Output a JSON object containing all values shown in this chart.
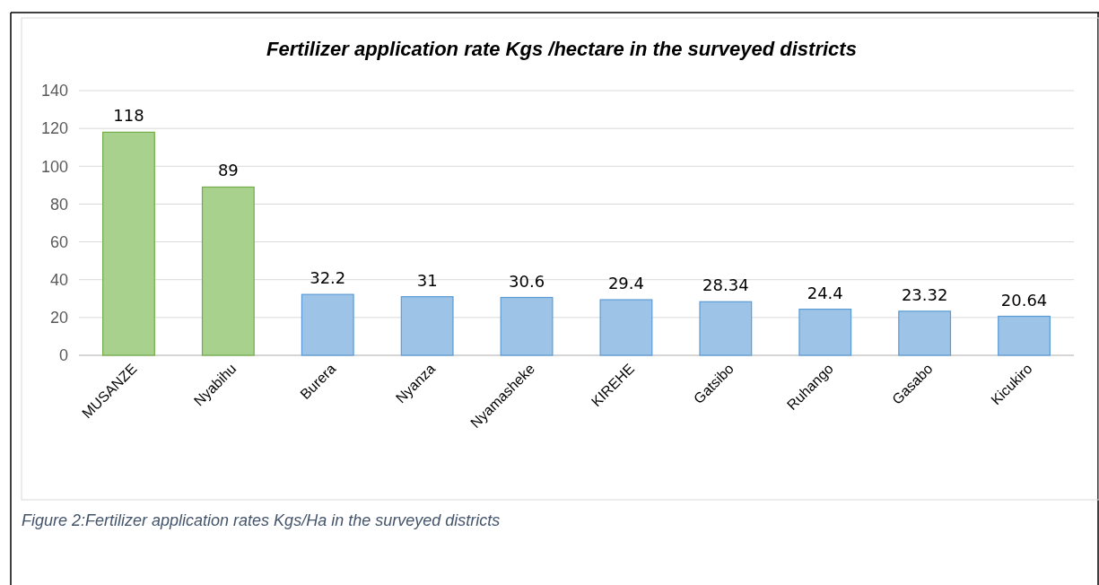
{
  "chart_data": {
    "type": "bar",
    "title": "Fertilizer application rate Kgs /hectare in the surveyed districts",
    "categories": [
      "MUSANZE",
      "Nyabihu",
      "Burera",
      "Nyanza",
      "Nyamasheke",
      "KIREHE",
      "Gatsibo",
      "Ruhango",
      "Gasabo",
      "Kicukiro"
    ],
    "values": [
      118,
      89,
      32.2,
      31,
      30.6,
      29.4,
      28.34,
      24.4,
      23.32,
      20.64
    ],
    "colors": [
      "#a9d18e",
      "#a9d18e",
      "#9dc3e6",
      "#9dc3e6",
      "#9dc3e6",
      "#9dc3e6",
      "#9dc3e6",
      "#9dc3e6",
      "#9dc3e6",
      "#9dc3e6"
    ],
    "ylim": [
      0,
      140
    ],
    "yticks": [
      0,
      20,
      40,
      60,
      80,
      100,
      120,
      140
    ],
    "grid": "y",
    "data_labels": true,
    "annotations": [
      "Figure 2:Fertilizer application rates Kgs/Ha in the surveyed districts"
    ]
  }
}
